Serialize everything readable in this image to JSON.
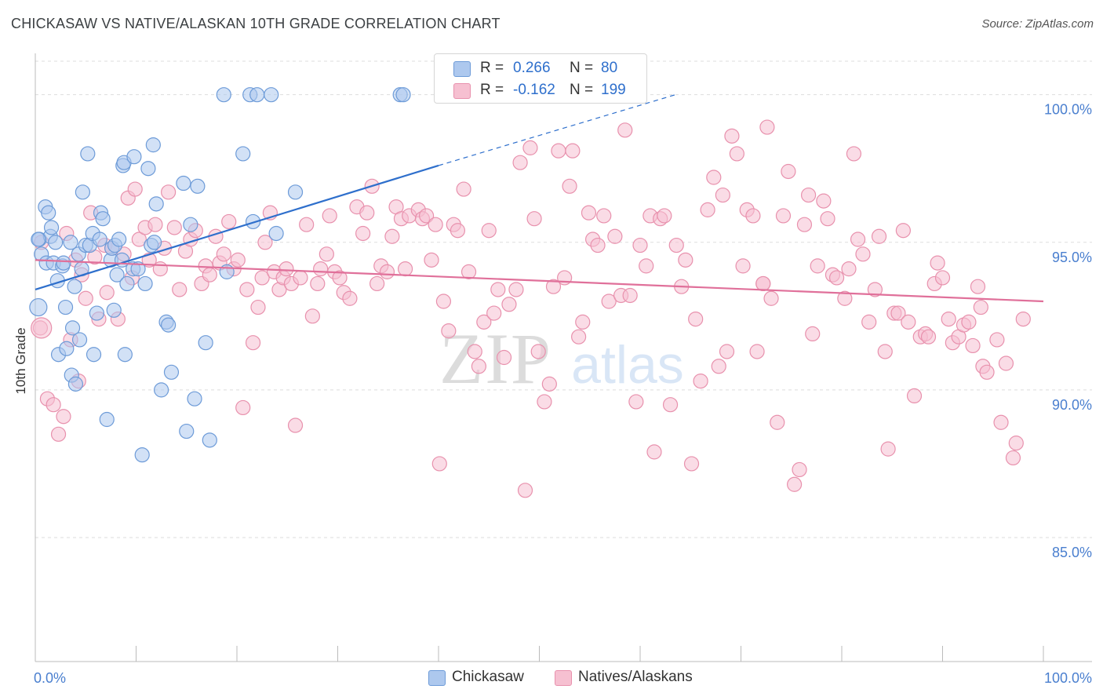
{
  "title": "CHICKASAW VS NATIVE/ALASKAN 10TH GRADE CORRELATION CHART",
  "source": "Source: ZipAtlas.com",
  "watermark": {
    "zip": "ZIP",
    "atlas": "atlas"
  },
  "legend": {
    "r_label": "R =",
    "n_label": "N =",
    "rows": [
      {
        "r": "0.266",
        "n": "80"
      },
      {
        "r": "-0.162",
        "n": "199"
      }
    ]
  },
  "colors": {
    "blue_fill": "#adc8ee",
    "blue_stroke": "#6d9bd8",
    "blue_line": "#2e6fcc",
    "pink_fill": "#f6c0d1",
    "pink_stroke": "#e891ad",
    "pink_line": "#e0709a",
    "tick_label": "#4a7fcf",
    "grid": "#dddddd"
  },
  "chart_data": {
    "type": "scatter",
    "title": "CHICKASAW VS NATIVE/ALASKAN 10TH GRADE CORRELATION CHART",
    "xlabel": "",
    "ylabel": "10th Grade",
    "xlim": [
      0,
      100
    ],
    "ylim": [
      80.8,
      101.4
    ],
    "x_tick_labels": [
      "0.0%",
      "100.0%"
    ],
    "y_ticks": [
      85,
      90,
      95,
      100
    ],
    "y_tick_labels": [
      "85.0%",
      "90.0%",
      "95.0%",
      "100.0%"
    ],
    "grid": true,
    "legend_position": "top-center",
    "series": [
      {
        "name": "Chickasaw",
        "r": 0.266,
        "n": 80,
        "trend": {
          "x": [
            0,
            40
          ],
          "y": [
            93.4,
            97.6
          ],
          "dashed_extension_to": [
            63.5,
            100.0
          ]
        },
        "points": [
          [
            0.3,
            92.8
          ],
          [
            0.4,
            95.1
          ],
          [
            0.6,
            94.6
          ],
          [
            1.0,
            96.2
          ],
          [
            1.1,
            94.3
          ],
          [
            1.3,
            96.0
          ],
          [
            1.5,
            95.2
          ],
          [
            1.6,
            95.5
          ],
          [
            1.8,
            94.3
          ],
          [
            2.0,
            95.0
          ],
          [
            2.2,
            93.7
          ],
          [
            2.3,
            91.2
          ],
          [
            2.7,
            94.2
          ],
          [
            2.8,
            94.3
          ],
          [
            3.0,
            92.8
          ],
          [
            3.1,
            91.4
          ],
          [
            3.5,
            95.0
          ],
          [
            3.6,
            90.5
          ],
          [
            3.7,
            92.1
          ],
          [
            3.9,
            93.5
          ],
          [
            4.0,
            90.2
          ],
          [
            4.3,
            94.6
          ],
          [
            4.4,
            91.7
          ],
          [
            4.6,
            94.1
          ],
          [
            4.7,
            96.7
          ],
          [
            5.0,
            94.9
          ],
          [
            5.2,
            98.0
          ],
          [
            5.4,
            94.9
          ],
          [
            5.7,
            95.3
          ],
          [
            5.8,
            91.2
          ],
          [
            6.1,
            92.6
          ],
          [
            6.4,
            95.1
          ],
          [
            6.5,
            96.0
          ],
          [
            6.7,
            95.8
          ],
          [
            7.1,
            89.0
          ],
          [
            7.5,
            94.4
          ],
          [
            7.6,
            94.8
          ],
          [
            7.8,
            92.7
          ],
          [
            7.9,
            94.9
          ],
          [
            8.1,
            93.9
          ],
          [
            8.3,
            95.1
          ],
          [
            8.6,
            94.4
          ],
          [
            8.7,
            97.6
          ],
          [
            8.8,
            97.7
          ],
          [
            8.9,
            91.2
          ],
          [
            9.1,
            93.6
          ],
          [
            9.7,
            94.1
          ],
          [
            9.8,
            97.9
          ],
          [
            10.2,
            94.1
          ],
          [
            10.6,
            87.8
          ],
          [
            10.9,
            93.6
          ],
          [
            11.2,
            97.5
          ],
          [
            11.5,
            94.9
          ],
          [
            11.7,
            98.3
          ],
          [
            11.8,
            95.0
          ],
          [
            12.0,
            96.3
          ],
          [
            12.5,
            90.0
          ],
          [
            13.0,
            92.3
          ],
          [
            13.2,
            92.2
          ],
          [
            13.5,
            90.6
          ],
          [
            14.7,
            97.0
          ],
          [
            15.0,
            88.6
          ],
          [
            15.4,
            95.6
          ],
          [
            15.8,
            89.7
          ],
          [
            16.1,
            96.9
          ],
          [
            16.9,
            91.6
          ],
          [
            17.3,
            88.3
          ],
          [
            18.7,
            100.0
          ],
          [
            19.0,
            94.0
          ],
          [
            20.6,
            98.0
          ],
          [
            21.3,
            100.0
          ],
          [
            21.6,
            95.7
          ],
          [
            22.0,
            100.0
          ],
          [
            23.4,
            100.0
          ],
          [
            23.9,
            95.3
          ],
          [
            25.8,
            96.7
          ],
          [
            36.2,
            100.0
          ],
          [
            36.5,
            100.0
          ],
          [
            41.0,
            100.0
          ],
          [
            0.3,
            95.1
          ]
        ]
      },
      {
        "name": "Natives/Alaskans",
        "r": -0.162,
        "n": 199,
        "trend": {
          "x": [
            0,
            100
          ],
          "y": [
            94.4,
            93.0
          ]
        },
        "points": [
          [
            0.5,
            92.1
          ],
          [
            0.6,
            95.0
          ],
          [
            1.2,
            89.7
          ],
          [
            1.8,
            89.5
          ],
          [
            2.3,
            88.5
          ],
          [
            2.8,
            89.1
          ],
          [
            3.1,
            95.3
          ],
          [
            3.5,
            91.7
          ],
          [
            4.0,
            94.4
          ],
          [
            4.3,
            90.3
          ],
          [
            4.6,
            93.9
          ],
          [
            5.0,
            93.1
          ],
          [
            5.5,
            96.0
          ],
          [
            5.9,
            94.5
          ],
          [
            6.3,
            92.4
          ],
          [
            6.9,
            94.9
          ],
          [
            7.1,
            93.3
          ],
          [
            7.6,
            94.8
          ],
          [
            8.2,
            92.4
          ],
          [
            8.8,
            94.6
          ],
          [
            9.2,
            96.5
          ],
          [
            9.6,
            93.8
          ],
          [
            9.9,
            96.8
          ],
          [
            10.3,
            95.1
          ],
          [
            10.9,
            95.5
          ],
          [
            11.3,
            94.4
          ],
          [
            11.9,
            95.6
          ],
          [
            12.4,
            94.1
          ],
          [
            12.8,
            94.8
          ],
          [
            13.2,
            96.7
          ],
          [
            13.8,
            95.5
          ],
          [
            14.3,
            93.4
          ],
          [
            14.9,
            94.7
          ],
          [
            15.4,
            95.1
          ],
          [
            15.9,
            95.4
          ],
          [
            16.5,
            93.6
          ],
          [
            16.9,
            94.2
          ],
          [
            17.3,
            93.9
          ],
          [
            17.9,
            95.2
          ],
          [
            18.3,
            94.3
          ],
          [
            18.7,
            94.6
          ],
          [
            19.2,
            95.7
          ],
          [
            19.7,
            94.1
          ],
          [
            20.1,
            94.4
          ],
          [
            20.6,
            89.4
          ],
          [
            21.0,
            93.4
          ],
          [
            21.6,
            91.6
          ],
          [
            22.1,
            92.8
          ],
          [
            22.5,
            93.8
          ],
          [
            22.8,
            95.0
          ],
          [
            23.3,
            96.0
          ],
          [
            23.7,
            94.0
          ],
          [
            24.2,
            93.4
          ],
          [
            24.6,
            93.8
          ],
          [
            24.9,
            94.1
          ],
          [
            25.4,
            93.6
          ],
          [
            25.8,
            88.8
          ],
          [
            26.3,
            93.8
          ],
          [
            26.9,
            95.6
          ],
          [
            27.5,
            92.5
          ],
          [
            28.0,
            93.6
          ],
          [
            28.3,
            94.1
          ],
          [
            28.9,
            94.6
          ],
          [
            29.2,
            95.9
          ],
          [
            29.7,
            94.0
          ],
          [
            30.2,
            93.8
          ],
          [
            30.6,
            93.3
          ],
          [
            31.2,
            93.1
          ],
          [
            31.9,
            96.2
          ],
          [
            32.5,
            95.3
          ],
          [
            32.9,
            96.0
          ],
          [
            33.4,
            96.9
          ],
          [
            33.9,
            93.6
          ],
          [
            34.3,
            94.2
          ],
          [
            34.9,
            94.0
          ],
          [
            35.4,
            95.2
          ],
          [
            35.8,
            96.2
          ],
          [
            36.3,
            95.8
          ],
          [
            36.7,
            94.1
          ],
          [
            37.1,
            95.9
          ],
          [
            38.0,
            96.1
          ],
          [
            38.4,
            95.8
          ],
          [
            38.8,
            95.9
          ],
          [
            39.3,
            94.4
          ],
          [
            39.7,
            95.6
          ],
          [
            40.1,
            87.5
          ],
          [
            40.5,
            93.0
          ],
          [
            41.0,
            92.0
          ],
          [
            41.5,
            95.6
          ],
          [
            41.9,
            95.4
          ],
          [
            42.5,
            96.8
          ],
          [
            43.0,
            94.0
          ],
          [
            43.6,
            91.3
          ],
          [
            44.0,
            90.8
          ],
          [
            44.5,
            92.3
          ],
          [
            45.0,
            95.4
          ],
          [
            45.5,
            92.6
          ],
          [
            45.9,
            93.4
          ],
          [
            46.5,
            91.1
          ],
          [
            47.0,
            92.9
          ],
          [
            47.7,
            93.4
          ],
          [
            48.1,
            97.7
          ],
          [
            48.6,
            86.6
          ],
          [
            49.1,
            98.2
          ],
          [
            49.5,
            95.8
          ],
          [
            49.9,
            91.3
          ],
          [
            50.5,
            89.6
          ],
          [
            51.0,
            90.2
          ],
          [
            51.4,
            93.5
          ],
          [
            51.9,
            98.1
          ],
          [
            52.5,
            93.8
          ],
          [
            53.0,
            96.9
          ],
          [
            53.3,
            98.1
          ],
          [
            53.9,
            91.8
          ],
          [
            54.3,
            92.3
          ],
          [
            54.9,
            96.0
          ],
          [
            55.3,
            95.1
          ],
          [
            55.8,
            94.9
          ],
          [
            56.4,
            95.9
          ],
          [
            56.9,
            93.0
          ],
          [
            57.5,
            95.2
          ],
          [
            58.1,
            93.2
          ],
          [
            58.5,
            98.8
          ],
          [
            59.0,
            93.2
          ],
          [
            59.6,
            89.6
          ],
          [
            60.0,
            94.9
          ],
          [
            60.6,
            94.2
          ],
          [
            61.0,
            95.9
          ],
          [
            61.4,
            87.9
          ],
          [
            62.0,
            95.8
          ],
          [
            62.4,
            95.9
          ],
          [
            63.0,
            89.5
          ],
          [
            63.6,
            94.9
          ],
          [
            64.1,
            93.5
          ],
          [
            64.5,
            94.4
          ],
          [
            65.1,
            87.5
          ],
          [
            65.5,
            92.4
          ],
          [
            66.0,
            90.3
          ],
          [
            66.7,
            96.1
          ],
          [
            67.3,
            97.2
          ],
          [
            67.8,
            90.8
          ],
          [
            68.2,
            96.6
          ],
          [
            68.6,
            91.3
          ],
          [
            69.1,
            98.6
          ],
          [
            69.6,
            98.0
          ],
          [
            70.2,
            94.2
          ],
          [
            70.6,
            96.1
          ],
          [
            71.2,
            95.9
          ],
          [
            71.6,
            91.3
          ],
          [
            72.2,
            93.6
          ],
          [
            72.6,
            98.9
          ],
          [
            73.0,
            93.1
          ],
          [
            73.6,
            88.9
          ],
          [
            74.2,
            95.9
          ],
          [
            74.7,
            97.4
          ],
          [
            75.3,
            86.8
          ],
          [
            75.8,
            87.3
          ],
          [
            76.3,
            95.6
          ],
          [
            76.7,
            96.6
          ],
          [
            77.1,
            91.9
          ],
          [
            77.6,
            94.2
          ],
          [
            78.2,
            96.4
          ],
          [
            78.6,
            95.8
          ],
          [
            79.1,
            93.9
          ],
          [
            79.5,
            93.8
          ],
          [
            80.3,
            93.1
          ],
          [
            80.7,
            94.1
          ],
          [
            81.2,
            98.0
          ],
          [
            81.6,
            95.1
          ],
          [
            82.1,
            94.6
          ],
          [
            82.7,
            92.3
          ],
          [
            83.3,
            93.4
          ],
          [
            83.7,
            95.2
          ],
          [
            84.3,
            91.3
          ],
          [
            84.6,
            88.0
          ],
          [
            85.2,
            92.6
          ],
          [
            85.6,
            92.6
          ],
          [
            86.1,
            95.4
          ],
          [
            86.6,
            92.3
          ],
          [
            87.2,
            89.8
          ],
          [
            87.8,
            91.8
          ],
          [
            88.3,
            91.9
          ],
          [
            88.6,
            91.8
          ],
          [
            89.2,
            93.6
          ],
          [
            89.5,
            94.3
          ],
          [
            90.0,
            93.8
          ],
          [
            90.6,
            92.4
          ],
          [
            91.0,
            91.6
          ],
          [
            91.6,
            91.8
          ],
          [
            92.1,
            92.2
          ],
          [
            92.6,
            92.3
          ],
          [
            93.0,
            91.5
          ],
          [
            93.5,
            93.5
          ],
          [
            93.8,
            92.8
          ],
          [
            94.0,
            90.8
          ],
          [
            94.4,
            90.6
          ],
          [
            95.4,
            91.7
          ],
          [
            95.8,
            88.9
          ],
          [
            96.3,
            90.9
          ],
          [
            97.0,
            87.7
          ],
          [
            97.3,
            88.2
          ],
          [
            98.0,
            92.4
          ],
          [
            72.2,
            93.6
          ]
        ]
      }
    ]
  }
}
